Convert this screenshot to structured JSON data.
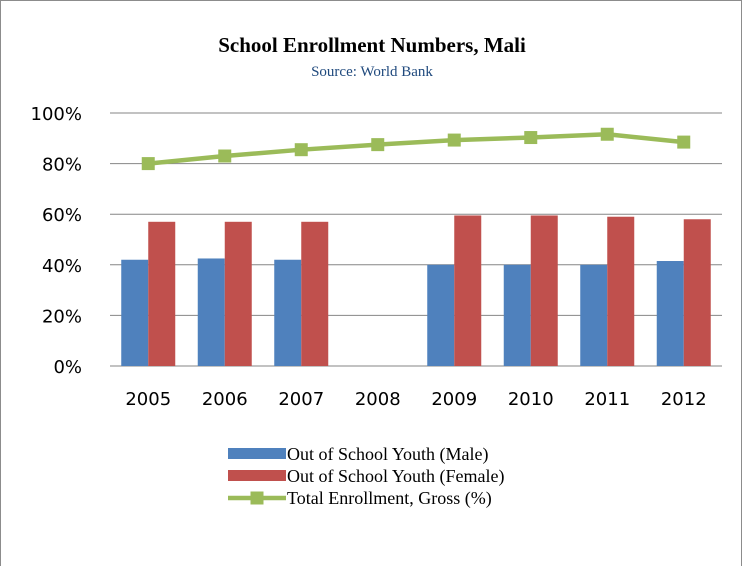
{
  "chart_data": {
    "type": "bar",
    "title": "School Enrollment Numbers, Mali",
    "subtitle": "Source: World Bank",
    "categories": [
      "2005",
      "2006",
      "2007",
      "2008",
      "2009",
      "2010",
      "2011",
      "2012"
    ],
    "ylim": [
      0,
      100
    ],
    "yticks": [
      "0%",
      "20%",
      "40%",
      "60%",
      "80%",
      "100%"
    ],
    "grid": true,
    "legend_position": "bottom",
    "series": [
      {
        "name": "Out of School Youth (Male)",
        "kind": "bar",
        "color": "#4f81bd",
        "values": [
          42,
          42.5,
          42,
          null,
          40,
          40,
          40,
          41.5
        ]
      },
      {
        "name": "Out of School Youth (Female)",
        "kind": "bar",
        "color": "#c0504d",
        "values": [
          57,
          57,
          57,
          null,
          59.5,
          59.5,
          59,
          58
        ]
      },
      {
        "name": "Total Enrollment, Gross (%)",
        "kind": "line",
        "color": "#9bbb59",
        "values": [
          80,
          83,
          85.5,
          87.5,
          89.3,
          90.3,
          91.6,
          88.5
        ]
      }
    ]
  }
}
